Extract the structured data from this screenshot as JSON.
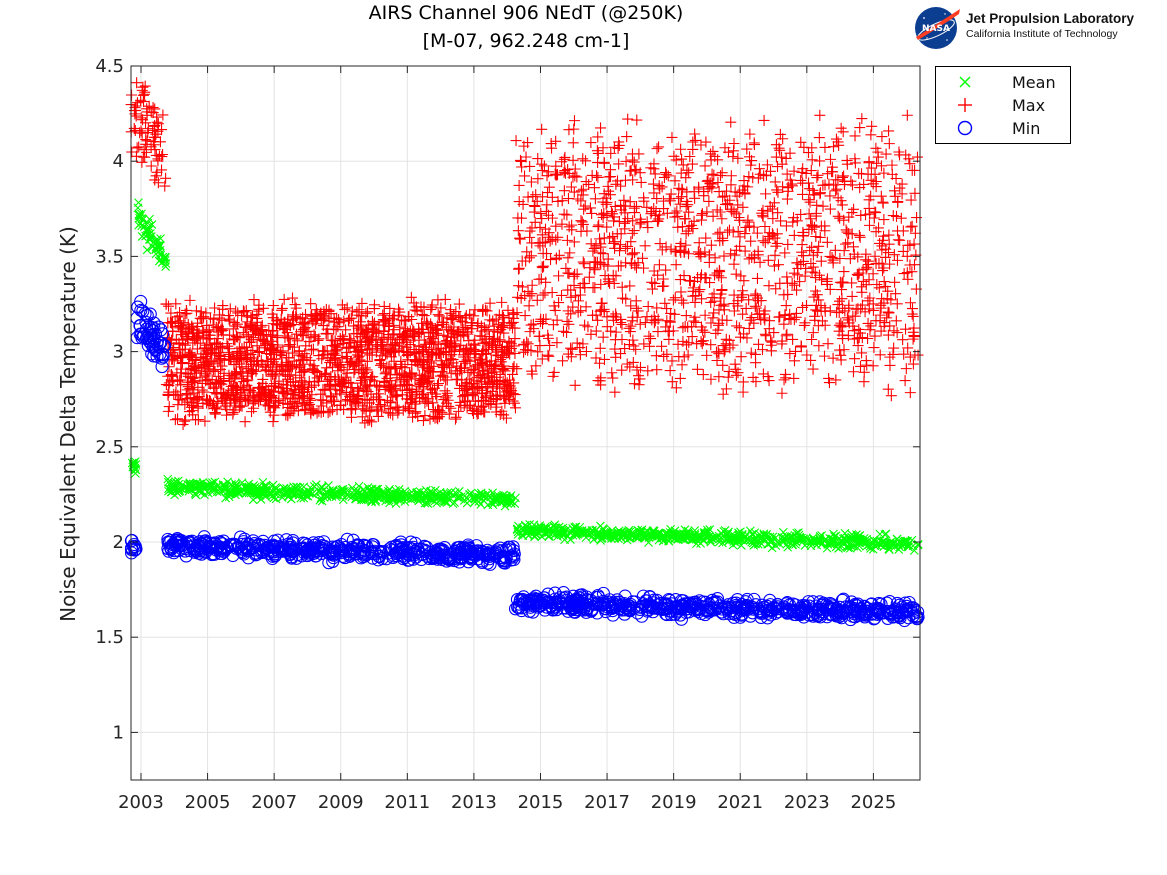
{
  "title_line1": "AIRS Channel 906 NEdT (@250K)",
  "title_line2": "[M-07, 962.248 cm-1]",
  "logo": {
    "org_name": "Jet Propulsion Laboratory",
    "org_subtitle": "California Institute of Technology",
    "meatball_text": "NASA"
  },
  "chart_data": {
    "type": "scatter",
    "title": "AIRS Channel 906 NEdT (@250K)",
    "subtitle": "[M-07, 962.248 cm-1]",
    "xlabel": "",
    "ylabel": "Noise Equivalent Delta Temperature (K)",
    "xlim": [
      2002.7,
      2026.4
    ],
    "ylim": [
      0.75,
      4.5
    ],
    "xticks": [
      2003,
      2005,
      2007,
      2009,
      2011,
      2013,
      2015,
      2017,
      2019,
      2021,
      2023,
      2025
    ],
    "xtick_labels": [
      "2003",
      "2005",
      "2007",
      "2009",
      "2011",
      "2013",
      "2015",
      "2017",
      "2019",
      "2021",
      "2023",
      "2025"
    ],
    "yticks": [
      1,
      1.5,
      2,
      2.5,
      3,
      3.5,
      4,
      4.5
    ],
    "ytick_labels": [
      "1",
      "1.5",
      "2",
      "2.5",
      "3",
      "3.5",
      "4",
      "4.5"
    ],
    "grid": true,
    "legend_position": "outside top-right",
    "series": [
      {
        "name": "Mean",
        "marker": "x",
        "color": "#00ff00",
        "segments": [
          {
            "x_start": 2002.7,
            "x_end": 2002.85,
            "y_start": 2.39,
            "y_end": 2.38,
            "spread": 0.04,
            "count": 12
          },
          {
            "x_start": 2002.85,
            "x_end": 2003.75,
            "y_start": 3.72,
            "y_end": 3.5,
            "spread": 0.08,
            "count": 60
          },
          {
            "x_start": 2003.75,
            "x_end": 2014.25,
            "y_start": 2.29,
            "y_end": 2.22,
            "spread": 0.035,
            "count": 520
          },
          {
            "x_start": 2014.25,
            "x_end": 2026.35,
            "y_start": 2.06,
            "y_end": 1.99,
            "spread": 0.035,
            "count": 600
          }
        ]
      },
      {
        "name": "Max",
        "marker": "+",
        "color": "#ff0000",
        "segments": [
          {
            "x_start": 2002.7,
            "x_end": 2003.75,
            "y_start": 4.25,
            "y_end": 4.05,
            "spread": 0.25,
            "count": 80
          },
          {
            "x_start": 2003.75,
            "x_end": 2014.25,
            "y_start": 2.95,
            "y_end": 2.95,
            "spread": 0.34,
            "count": 1900
          },
          {
            "x_start": 2014.25,
            "x_end": 2026.35,
            "y_start": 3.5,
            "y_end": 3.5,
            "spread": 0.75,
            "count": 1400
          }
        ]
      },
      {
        "name": "Min",
        "marker": "o",
        "color": "#0000ff",
        "segments": [
          {
            "x_start": 2002.7,
            "x_end": 2002.85,
            "y_start": 1.98,
            "y_end": 1.98,
            "spread": 0.05,
            "count": 12
          },
          {
            "x_start": 2002.85,
            "x_end": 2003.75,
            "y_start": 3.15,
            "y_end": 3.0,
            "spread": 0.1,
            "count": 60
          },
          {
            "x_start": 2003.75,
            "x_end": 2014.25,
            "y_start": 1.98,
            "y_end": 1.93,
            "spread": 0.045,
            "count": 520
          },
          {
            "x_start": 2014.25,
            "x_end": 2026.35,
            "y_start": 1.68,
            "y_end": 1.63,
            "spread": 0.045,
            "count": 600
          }
        ]
      }
    ]
  },
  "colors": {
    "mean": "#00ff00",
    "max": "#ff0000",
    "min": "#0000ff",
    "nasa_blue": "#0b3d91",
    "nasa_red": "#fc3d21"
  }
}
